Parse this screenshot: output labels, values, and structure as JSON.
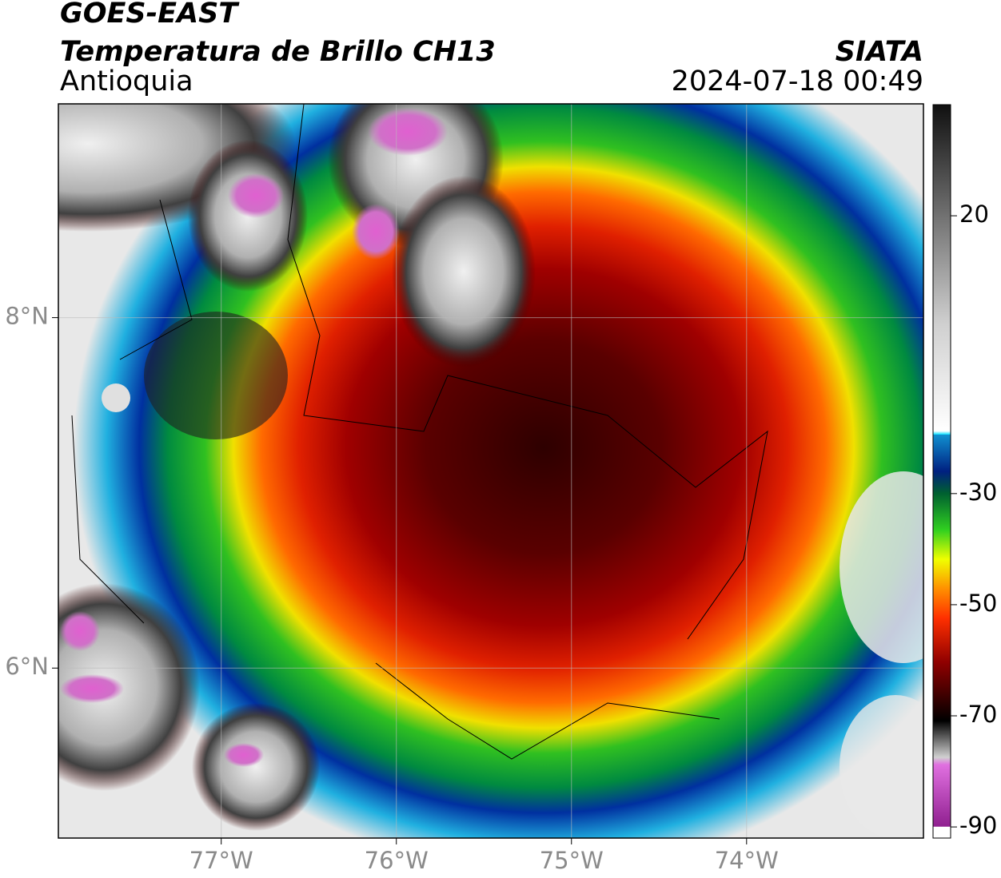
{
  "header": {
    "title": "GOES-EAST",
    "subtitle": "Temperatura de Brillo CH13",
    "region": "Antioquia",
    "source": "SIATA",
    "datetime": "2024-07-18 00:49"
  },
  "map": {
    "xlim": [
      -77.93,
      -72.99
    ],
    "ylim": [
      5.03,
      9.22
    ],
    "xticks": [
      {
        "value": -77,
        "label": "77°W"
      },
      {
        "value": -76,
        "label": "76°W"
      },
      {
        "value": -75,
        "label": "75°W"
      },
      {
        "value": -74,
        "label": "74°W"
      }
    ],
    "yticks": [
      {
        "value": 8,
        "label": "8°N"
      },
      {
        "value": 6,
        "label": "6°N"
      }
    ],
    "grid": true
  },
  "colorbar": {
    "lim": [
      -92,
      40
    ],
    "ticks": [
      20,
      -30,
      -50,
      -70,
      -90
    ]
  }
}
